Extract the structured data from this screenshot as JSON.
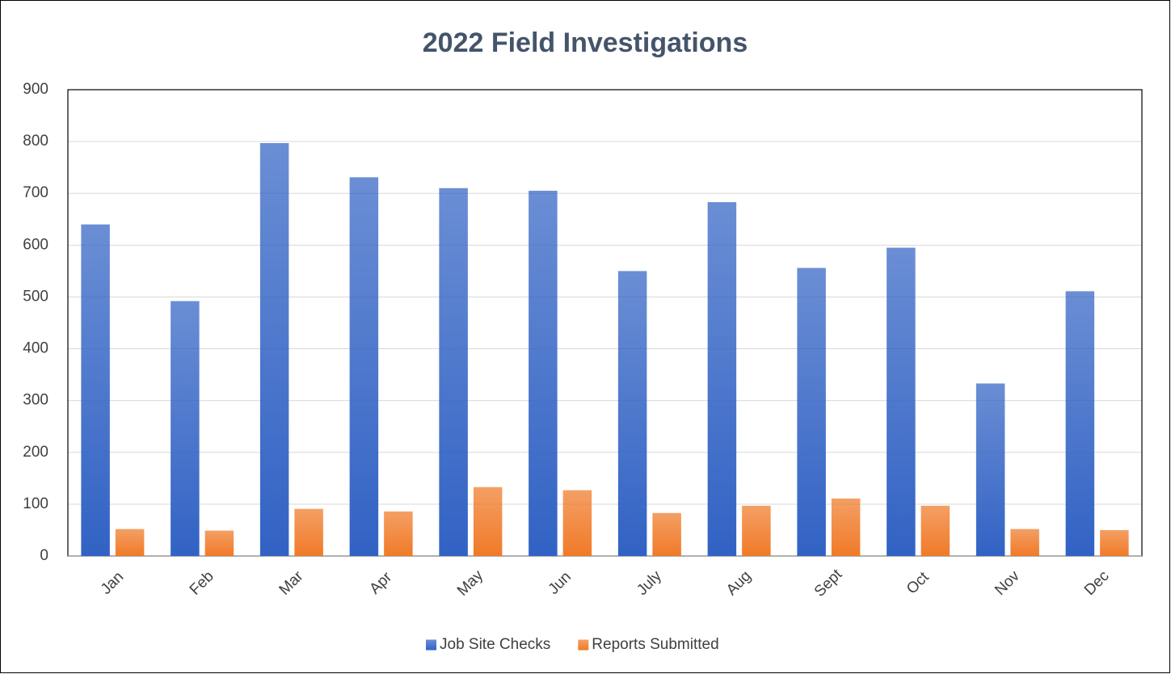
{
  "chart_data": {
    "type": "bar",
    "title": "2022 Field Investigations",
    "categories": [
      "Jan",
      "Feb",
      "Mar",
      "Apr",
      "May",
      "Jun",
      "July",
      "Aug",
      "Sept",
      "Oct",
      "Nov",
      "Dec"
    ],
    "series": [
      {
        "name": "Job Site Checks",
        "color": "#3162c4",
        "values": [
          640,
          492,
          797,
          731,
          710,
          705,
          550,
          683,
          556,
          595,
          333,
          511
        ]
      },
      {
        "name": "Reports Submitted",
        "color": "#f07a28",
        "values": [
          52,
          49,
          91,
          86,
          133,
          127,
          83,
          97,
          111,
          97,
          52,
          50
        ]
      }
    ],
    "ylim": [
      0,
      900
    ],
    "yticks": [
      0,
      100,
      200,
      300,
      400,
      500,
      600,
      700,
      800,
      900
    ],
    "grid": true,
    "legend": "bottom"
  }
}
